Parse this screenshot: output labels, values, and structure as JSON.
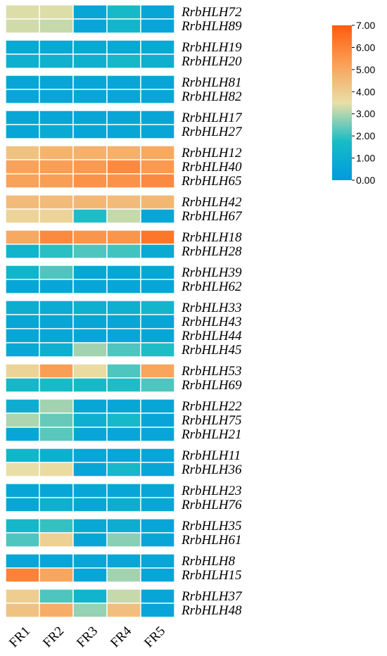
{
  "chart_data": {
    "type": "heatmap",
    "columns": [
      "FR1",
      "FR2",
      "FR3",
      "FR4",
      "FR5"
    ],
    "groups": [
      [
        {
          "gene": "RrbHLH72",
          "values": [
            3.4,
            3.4,
            0.6,
            1.6,
            0.6
          ]
        },
        {
          "gene": "RrbHLH89",
          "values": [
            3.3,
            3.2,
            0.6,
            1.4,
            0.6
          ]
        }
      ],
      [
        {
          "gene": "RrbHLH19",
          "values": [
            0.7,
            0.7,
            0.7,
            0.7,
            0.7
          ]
        },
        {
          "gene": "RrbHLH20",
          "values": [
            1.1,
            1.2,
            1.1,
            1.5,
            1.1
          ]
        }
      ],
      [
        {
          "gene": "RrbHLH81",
          "values": [
            0.6,
            0.6,
            0.6,
            0.6,
            0.6
          ]
        },
        {
          "gene": "RrbHLH82",
          "values": [
            0.6,
            0.6,
            0.6,
            0.6,
            0.6
          ]
        }
      ],
      [
        {
          "gene": "RrbHLH17",
          "values": [
            0.6,
            0.6,
            0.6,
            0.6,
            0.6
          ]
        },
        {
          "gene": "RrbHLH27",
          "values": [
            0.6,
            0.8,
            0.6,
            0.6,
            0.6
          ]
        }
      ],
      [
        {
          "gene": "RrbHLH12",
          "values": [
            4.3,
            4.7,
            4.8,
            4.8,
            5.0
          ]
        },
        {
          "gene": "RrbHLH40",
          "values": [
            5.2,
            5.3,
            5.4,
            5.8,
            5.4
          ]
        },
        {
          "gene": "RrbHLH65",
          "values": [
            5.2,
            5.3,
            5.6,
            5.6,
            5.8
          ]
        }
      ],
      [
        {
          "gene": "RrbHLH42",
          "values": [
            4.5,
            4.5,
            4.6,
            4.5,
            4.6
          ]
        },
        {
          "gene": "RrbHLH67",
          "values": [
            3.8,
            3.8,
            1.8,
            3.2,
            0.6
          ]
        }
      ],
      [
        {
          "gene": "RrbHLH18",
          "values": [
            5.0,
            5.8,
            5.5,
            5.5,
            6.3
          ]
        },
        {
          "gene": "RrbHLH28",
          "values": [
            1.3,
            1.9,
            2.2,
            2.1,
            0.8
          ]
        }
      ],
      [
        {
          "gene": "RrbHLH39",
          "values": [
            1.3,
            2.2,
            0.6,
            0.6,
            0.6
          ]
        },
        {
          "gene": "RrbHLH62",
          "values": [
            0.6,
            0.6,
            0.6,
            0.6,
            0.6
          ]
        }
      ],
      [
        {
          "gene": "RrbHLH33",
          "values": [
            1.0,
            0.9,
            1.1,
            1.1,
            1.4
          ]
        },
        {
          "gene": "RrbHLH43",
          "values": [
            0.6,
            0.6,
            0.6,
            0.6,
            0.6
          ]
        },
        {
          "gene": "RrbHLH44",
          "values": [
            0.6,
            0.6,
            0.6,
            0.6,
            0.6
          ]
        },
        {
          "gene": "RrbHLH45",
          "values": [
            0.7,
            1.1,
            2.9,
            2.2,
            1.8
          ]
        }
      ],
      [
        {
          "gene": "RrbHLH53",
          "values": [
            3.8,
            5.3,
            3.6,
            2.2,
            5.1
          ]
        },
        {
          "gene": "RrbHLH69",
          "values": [
            1.5,
            1.7,
            1.6,
            1.8,
            2.2
          ]
        }
      ],
      [
        {
          "gene": "RrbHLH22",
          "values": [
            1.0,
            2.9,
            0.6,
            0.6,
            0.6
          ]
        },
        {
          "gene": "RrbHLH75",
          "values": [
            3.0,
            2.4,
            1.1,
            1.6,
            0.6
          ]
        },
        {
          "gene": "RrbHLH21",
          "values": [
            0.6,
            2.3,
            0.6,
            0.6,
            0.6
          ]
        }
      ],
      [
        {
          "gene": "RrbHLH11",
          "values": [
            1.4,
            1.1,
            0.6,
            0.6,
            0.6
          ]
        },
        {
          "gene": "RrbHLH36",
          "values": [
            3.5,
            3.6,
            0.6,
            1.5,
            0.6
          ]
        }
      ],
      [
        {
          "gene": "RrbHLH23",
          "values": [
            0.6,
            0.6,
            0.6,
            0.6,
            0.6
          ]
        },
        {
          "gene": "RrbHLH76",
          "values": [
            0.6,
            1.1,
            0.6,
            1.0,
            0.6
          ]
        }
      ],
      [
        {
          "gene": "RrbHLH35",
          "values": [
            1.5,
            2.0,
            0.7,
            1.0,
            0.6
          ]
        },
        {
          "gene": "RrbHLH61",
          "values": [
            2.2,
            3.9,
            0.6,
            2.7,
            0.6
          ]
        }
      ],
      [
        {
          "gene": "RrbHLH8",
          "values": [
            0.6,
            0.6,
            0.6,
            0.6,
            0.6
          ]
        },
        {
          "gene": "RrbHLH15",
          "values": [
            6.0,
            5.1,
            0.6,
            2.9,
            0.6
          ]
        }
      ],
      [
        {
          "gene": "RrbHLH37",
          "values": [
            4.0,
            2.2,
            1.3,
            3.2,
            0.6
          ]
        },
        {
          "gene": "RrbHLH48",
          "values": [
            4.3,
            4.9,
            2.8,
            4.4,
            0.6
          ]
        }
      ]
    ],
    "scale": {
      "min": 0,
      "max": 7,
      "ticks": [
        "7.00",
        "6.00",
        "5.00",
        "4.00",
        "3.00",
        "2.00",
        "1.00",
        "0.00"
      ],
      "colors": [
        "#009ade",
        "#18bcc6",
        "#e9dfa6",
        "#f9a057",
        "#ff5b0d"
      ]
    }
  }
}
